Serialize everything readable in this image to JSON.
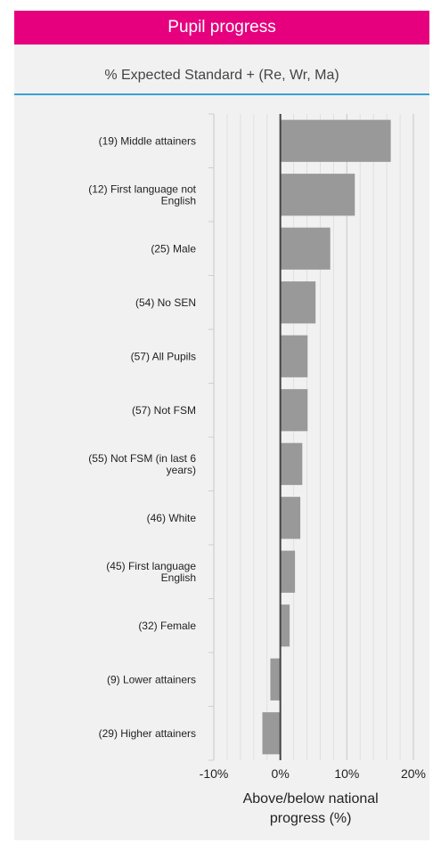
{
  "header": {
    "title": "Pupil progress"
  },
  "subheader": {
    "title": "% Expected Standard + (Re, Wr, Ma)"
  },
  "colors": {
    "header_bg": "#e6007e",
    "bar": "#999999",
    "divider": "#3aa0d6",
    "panel_bg": "#f1f1f1"
  },
  "chart_data": {
    "type": "bar",
    "orientation": "horizontal",
    "categories": [
      "(19) Middle attainers",
      "(12) First language not English",
      "(25) Male",
      "(54) No SEN",
      "(57) All Pupils",
      "(57) Not FSM",
      "(55) Not FSM (in last 6 years)",
      "(46) White",
      "(45) First language English",
      "(32) Female",
      "(9) Lower attainers",
      "(29) Higher attainers"
    ],
    "values": [
      16.6,
      11.2,
      7.5,
      5.3,
      4.1,
      4.1,
      3.3,
      3.0,
      2.2,
      1.4,
      -1.5,
      -2.7
    ],
    "xlim": [
      -10,
      20
    ],
    "xticks": [
      "-10%",
      "0%",
      "10%",
      "20%"
    ],
    "xlabel_lines": [
      "Above/below national",
      "progress (%)"
    ],
    "grid": true
  }
}
